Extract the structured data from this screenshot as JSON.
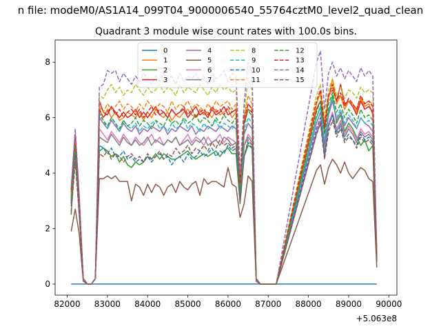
{
  "figure": {
    "suptitle": "n file: modeM0/AS1A14_099T04_9000006540_55764cztM0_level2_quad_clean",
    "title": "Quadrant 3 module wise count rates with 100.0s bins."
  },
  "chart_data": {
    "type": "line",
    "title": "Quadrant 3 module wise count rates with 100.0s bins.",
    "xlabel": "",
    "ylabel": "",
    "x_offset_label": "+5.063e8",
    "xlim": [
      81700,
      90200
    ],
    "ylim": [
      -0.4,
      8.8
    ],
    "xticks": [
      82000,
      83000,
      84000,
      85000,
      86000,
      87000,
      88000,
      89000,
      90000
    ],
    "yticks": [
      0,
      2,
      4,
      6,
      8
    ],
    "grid": false,
    "legend": {
      "placement": "upper center",
      "columns": 4
    },
    "x": [
      82100,
      82200,
      82300,
      82400,
      82500,
      82600,
      82700,
      82800,
      82900,
      83000,
      83100,
      83200,
      83300,
      83400,
      83500,
      83600,
      83700,
      83800,
      83900,
      84000,
      84100,
      84200,
      84300,
      84400,
      84500,
      84600,
      84700,
      84800,
      84900,
      85000,
      85100,
      85200,
      85300,
      85400,
      85500,
      85600,
      85700,
      85800,
      85900,
      86000,
      86100,
      86200,
      86300,
      86400,
      86500,
      86600,
      86700,
      86800,
      86900,
      87000,
      87200,
      88200,
      88300,
      88400,
      88500,
      88600,
      88700,
      88800,
      88900,
      89000,
      89100,
      89200,
      89300,
      89400,
      89500,
      89600,
      89700
    ],
    "series": [
      {
        "name": "0",
        "color": "#1f77b4",
        "dash": "solid",
        "values": [
          0,
          0,
          0,
          0,
          0,
          0,
          0,
          0,
          0,
          0,
          0,
          0,
          0,
          0,
          0,
          0,
          0,
          0,
          0,
          0,
          0,
          0,
          0,
          0,
          0,
          0,
          0,
          0,
          0,
          0,
          0,
          0,
          0,
          0,
          0,
          0,
          0,
          0,
          0,
          0,
          0,
          0,
          0,
          0,
          0,
          0,
          0,
          0,
          0,
          0,
          0,
          0,
          0,
          0,
          0,
          0,
          0,
          0,
          0,
          0,
          0,
          0,
          0,
          0,
          0,
          0,
          0
        ]
      },
      {
        "name": "1",
        "color": "#ff7f0e",
        "dash": "solid",
        "values": [
          3.2,
          5.2,
          3.0,
          0.2,
          0.0,
          0.0,
          0.2,
          6.3,
          6.0,
          6.3,
          6.0,
          6.2,
          5.9,
          6.0,
          6.2,
          6.1,
          6.0,
          6.2,
          5.9,
          6.2,
          6.0,
          6.3,
          6.1,
          6.0,
          6.2,
          5.9,
          6.1,
          6.0,
          6.2,
          6.3,
          6.1,
          6.0,
          6.3,
          6.1,
          6.2,
          6.0,
          6.3,
          6.1,
          6.2,
          6.3,
          6.0,
          6.2,
          3.5,
          5.8,
          6.5,
          6.3,
          0.2,
          0.0,
          0.0,
          0.0,
          0.0,
          6.5,
          6.9,
          5.5,
          6.7,
          7.4,
          6.5,
          6.8,
          6.3,
          6.6,
          6.5,
          6.2,
          6.7,
          6.4,
          6.5,
          6.1,
          1.0
        ]
      },
      {
        "name": "2",
        "color": "#2ca02c",
        "dash": "solid",
        "values": [
          2.5,
          4.8,
          2.5,
          0.2,
          0.0,
          0.0,
          0.2,
          4.8,
          4.9,
          4.8,
          4.6,
          4.7,
          4.4,
          4.6,
          4.3,
          4.2,
          4.4,
          4.3,
          4.4,
          4.6,
          4.5,
          4.7,
          4.5,
          4.7,
          4.6,
          4.5,
          4.5,
          4.6,
          4.7,
          4.8,
          4.6,
          4.5,
          4.6,
          4.7,
          4.6,
          4.7,
          4.8,
          4.6,
          4.8,
          4.9,
          4.7,
          4.7,
          2.9,
          4.6,
          5.0,
          4.9,
          0.2,
          0.0,
          0.0,
          0.0,
          0.0,
          6.0,
          6.4,
          4.9,
          6.2,
          6.8,
          5.8,
          6.1,
          5.5,
          5.8,
          5.6,
          5.3,
          5.0,
          5.2,
          4.8,
          5.0,
          0.8
        ]
      },
      {
        "name": "3",
        "color": "#d62728",
        "dash": "solid",
        "values": [
          3.0,
          5.0,
          2.9,
          0.2,
          0.0,
          0.0,
          0.2,
          6.6,
          6.2,
          6.1,
          6.4,
          6.2,
          6.0,
          6.2,
          6.0,
          6.1,
          6.3,
          6.0,
          6.2,
          6.0,
          6.2,
          6.4,
          6.1,
          6.2,
          6.0,
          6.3,
          6.1,
          6.2,
          6.3,
          6.0,
          6.2,
          6.4,
          6.1,
          6.2,
          6.0,
          6.3,
          6.1,
          6.2,
          6.4,
          6.1,
          6.2,
          6.3,
          3.4,
          5.8,
          6.3,
          6.2,
          0.2,
          0.0,
          0.0,
          0.0,
          0.0,
          6.3,
          6.6,
          5.6,
          6.8,
          7.0,
          6.6,
          7.2,
          6.5,
          6.6,
          6.4,
          6.1,
          6.6,
          6.3,
          6.4,
          6.2,
          1.0
        ]
      },
      {
        "name": "4",
        "color": "#9467bd",
        "dash": "solid",
        "values": [
          2.8,
          4.8,
          2.8,
          0.2,
          0.0,
          0.0,
          0.2,
          6.0,
          5.8,
          5.6,
          5.9,
          5.7,
          5.5,
          5.8,
          5.6,
          5.5,
          5.7,
          5.4,
          5.6,
          5.5,
          5.7,
          5.6,
          5.5,
          5.7,
          5.4,
          5.6,
          5.5,
          5.7,
          5.6,
          5.5,
          5.7,
          5.4,
          5.6,
          5.5,
          5.7,
          5.6,
          5.5,
          5.7,
          5.6,
          5.5,
          5.7,
          5.6,
          3.2,
          5.4,
          5.8,
          5.6,
          0.2,
          0.0,
          0.0,
          0.0,
          0.0,
          5.8,
          6.2,
          5.1,
          6.1,
          6.6,
          5.9,
          6.2,
          5.7,
          6.0,
          5.8,
          5.6,
          6.0,
          5.8,
          5.7,
          5.5,
          0.9
        ]
      },
      {
        "name": "5",
        "color": "#8c564b",
        "dash": "solid",
        "values": [
          1.9,
          2.7,
          1.8,
          0.1,
          0.0,
          0.0,
          0.2,
          3.8,
          3.8,
          3.9,
          3.8,
          3.9,
          3.7,
          3.7,
          3.7,
          3.0,
          3.6,
          3.5,
          3.2,
          3.6,
          3.3,
          3.6,
          3.5,
          3.2,
          3.5,
          3.6,
          3.3,
          3.7,
          3.5,
          3.4,
          3.6,
          3.7,
          3.2,
          3.8,
          3.6,
          3.7,
          3.7,
          3.6,
          3.5,
          4.2,
          3.6,
          3.5,
          2.4,
          2.9,
          3.9,
          3.7,
          0.1,
          0.0,
          0.0,
          0.0,
          0.0,
          4.1,
          4.3,
          3.6,
          4.2,
          4.5,
          4.3,
          4.0,
          4.4,
          4.0,
          3.8,
          4.0,
          4.2,
          4.1,
          3.8,
          3.7,
          0.6
        ]
      },
      {
        "name": "6",
        "color": "#e377c2",
        "dash": "solid",
        "values": [
          3.2,
          5.2,
          3.0,
          0.2,
          0.0,
          0.0,
          0.2,
          5.6,
          5.4,
          5.2,
          5.5,
          5.3,
          5.1,
          5.4,
          5.2,
          5.0,
          5.3,
          5.1,
          5.0,
          5.2,
          5.4,
          5.1,
          5.3,
          5.0,
          5.2,
          5.1,
          5.3,
          5.0,
          5.2,
          5.4,
          5.1,
          5.3,
          5.2,
          5.0,
          5.3,
          5.1,
          5.2,
          5.4,
          5.1,
          5.3,
          5.2,
          5.1,
          3.0,
          5.0,
          5.4,
          5.2,
          0.2,
          0.0,
          0.0,
          0.0,
          0.0,
          5.5,
          5.9,
          4.8,
          5.8,
          6.2,
          5.6,
          5.9,
          5.4,
          5.7,
          5.5,
          5.2,
          5.6,
          5.4,
          5.5,
          5.3,
          0.9
        ]
      },
      {
        "name": "7",
        "color": "#7f7f7f",
        "dash": "solid",
        "values": [
          3.0,
          4.9,
          2.8,
          0.2,
          0.0,
          0.0,
          0.2,
          5.3,
          5.2,
          5.1,
          5.4,
          5.2,
          5.0,
          5.3,
          5.1,
          5.0,
          5.2,
          5.0,
          5.1,
          5.3,
          5.0,
          5.2,
          5.1,
          5.0,
          5.2,
          5.1,
          5.3,
          5.0,
          5.1,
          5.2,
          5.0,
          5.2,
          5.1,
          5.3,
          5.0,
          5.1,
          5.2,
          5.0,
          5.3,
          5.2,
          5.0,
          5.1,
          3.0,
          5.0,
          5.3,
          5.1,
          0.2,
          0.0,
          0.0,
          0.0,
          0.0,
          5.4,
          5.8,
          4.7,
          5.7,
          6.1,
          5.5,
          5.8,
          5.3,
          5.6,
          5.4,
          5.1,
          5.5,
          5.3,
          5.4,
          5.2,
          0.9
        ]
      },
      {
        "name": "8",
        "color": "#bcbd22",
        "dash": "dashed",
        "values": [
          3.4,
          5.4,
          3.1,
          0.2,
          0.0,
          0.0,
          0.2,
          6.8,
          6.7,
          7.0,
          7.2,
          6.9,
          7.1,
          6.8,
          7.0,
          6.9,
          7.2,
          7.0,
          6.8,
          7.1,
          6.9,
          7.0,
          7.2,
          6.9,
          7.1,
          7.0,
          6.8,
          7.2,
          6.9,
          7.1,
          7.0,
          6.9,
          7.2,
          7.0,
          6.8,
          7.1,
          6.9,
          7.2,
          7.0,
          7.1,
          6.9,
          7.0,
          3.8,
          6.2,
          7.4,
          7.0,
          0.2,
          0.0,
          0.0,
          0.0,
          0.0,
          6.8,
          7.2,
          6.0,
          7.0,
          7.4,
          6.8,
          7.1,
          6.7,
          7.0,
          6.9,
          6.7,
          7.1,
          6.9,
          7.0,
          6.9,
          1.1
        ]
      },
      {
        "name": "9",
        "color": "#17becf",
        "dash": "dashed",
        "values": [
          3.3,
          5.3,
          3.0,
          0.2,
          0.0,
          0.0,
          0.2,
          6.2,
          5.9,
          5.6,
          6.0,
          5.8,
          5.5,
          5.9,
          5.7,
          5.6,
          5.8,
          5.5,
          5.7,
          5.6,
          5.8,
          5.9,
          5.6,
          5.7,
          5.5,
          5.8,
          5.6,
          5.7,
          5.9,
          5.6,
          5.8,
          5.7,
          5.5,
          5.8,
          5.6,
          5.7,
          5.9,
          5.6,
          5.8,
          5.7,
          5.6,
          5.8,
          3.3,
          5.5,
          6.0,
          5.8,
          0.2,
          0.0,
          0.0,
          0.0,
          0.0,
          6.0,
          6.4,
          5.2,
          6.3,
          6.7,
          6.0,
          6.3,
          5.8,
          6.1,
          5.9,
          5.6,
          6.0,
          5.8,
          5.9,
          5.7,
          1.0
        ]
      },
      {
        "name": "10",
        "color": "#1f77b4",
        "dash": "dashed",
        "values": [
          2.9,
          4.7,
          2.7,
          0.2,
          0.0,
          0.0,
          0.2,
          5.0,
          4.9,
          4.7,
          4.9,
          4.6,
          4.6,
          4.8,
          4.5,
          4.6,
          4.4,
          4.5,
          4.4,
          4.6,
          4.4,
          4.6,
          4.7,
          4.5,
          4.6,
          4.3,
          4.5,
          4.6,
          4.4,
          4.7,
          4.5,
          4.6,
          4.8,
          4.6,
          4.7,
          4.9,
          4.6,
          4.8,
          4.7,
          5.0,
          4.8,
          4.9,
          3.0,
          4.6,
          5.1,
          4.9,
          0.2,
          0.0,
          0.0,
          0.0,
          0.0,
          5.6,
          6.0,
          4.6,
          5.7,
          6.1,
          5.4,
          5.7,
          5.2,
          5.4,
          5.2,
          5.0,
          5.4,
          5.2,
          5.3,
          5.1,
          0.8
        ]
      },
      {
        "name": "11",
        "color": "#ff7f0e",
        "dash": "dashed",
        "values": [
          3.3,
          5.2,
          3.0,
          0.2,
          0.0,
          0.0,
          0.2,
          6.4,
          6.2,
          6.5,
          6.3,
          6.4,
          6.6,
          6.3,
          6.5,
          6.4,
          6.2,
          6.5,
          6.3,
          6.6,
          6.4,
          6.3,
          6.5,
          6.4,
          6.2,
          6.6,
          6.3,
          6.5,
          6.4,
          6.6,
          6.3,
          6.5,
          6.4,
          6.2,
          6.5,
          6.3,
          6.6,
          6.4,
          6.5,
          6.6,
          6.3,
          6.5,
          3.6,
          6.0,
          6.8,
          6.5,
          0.2,
          0.0,
          0.0,
          0.0,
          0.0,
          6.5,
          6.9,
          5.8,
          6.7,
          7.1,
          6.5,
          6.8,
          6.3,
          6.6,
          6.5,
          6.3,
          6.7,
          6.5,
          6.6,
          6.5,
          1.0
        ]
      },
      {
        "name": "12",
        "color": "#2ca02c",
        "dash": "dashed",
        "values": [
          3.1,
          5.0,
          2.9,
          0.2,
          0.0,
          0.0,
          0.2,
          6.1,
          5.9,
          5.7,
          6.0,
          5.8,
          5.6,
          5.9,
          5.7,
          5.8,
          6.0,
          5.7,
          5.9,
          5.8,
          5.6,
          5.9,
          5.8,
          5.7,
          6.0,
          5.8,
          5.9,
          5.7,
          6.0,
          5.8,
          5.9,
          6.1,
          5.8,
          6.0,
          5.9,
          5.7,
          6.0,
          5.8,
          6.1,
          5.9,
          5.8,
          6.0,
          3.4,
          5.7,
          6.3,
          6.0,
          0.2,
          0.0,
          0.0,
          0.0,
          0.0,
          6.2,
          6.6,
          5.4,
          6.5,
          6.9,
          6.2,
          6.5,
          6.0,
          6.3,
          6.1,
          5.8,
          6.3,
          6.0,
          6.1,
          5.9,
          1.0
        ]
      },
      {
        "name": "13",
        "color": "#d62728",
        "dash": "dashed",
        "values": [
          3.4,
          5.4,
          3.1,
          0.2,
          0.0,
          0.0,
          0.2,
          6.3,
          6.0,
          6.2,
          6.4,
          6.1,
          6.3,
          6.0,
          6.2,
          6.3,
          6.1,
          6.3,
          6.0,
          6.2,
          6.4,
          6.1,
          6.3,
          6.2,
          6.0,
          6.3,
          6.1,
          6.2,
          6.4,
          6.1,
          6.3,
          6.0,
          6.2,
          6.3,
          6.1,
          6.4,
          6.2,
          6.3,
          6.1,
          6.4,
          6.2,
          6.3,
          3.6,
          6.0,
          6.5,
          6.3,
          0.2,
          0.0,
          0.0,
          0.0,
          0.0,
          6.6,
          7.0,
          5.7,
          6.8,
          7.2,
          6.6,
          6.9,
          6.4,
          6.7,
          6.5,
          6.3,
          6.8,
          6.5,
          6.6,
          6.4,
          1.0
        ]
      },
      {
        "name": "14",
        "color": "#9467bd",
        "dash": "dashed",
        "values": [
          3.5,
          5.6,
          3.2,
          0.2,
          0.0,
          0.0,
          0.2,
          7.1,
          7.2,
          7.7,
          7.6,
          7.7,
          7.3,
          7.6,
          7.4,
          7.2,
          7.5,
          7.3,
          7.6,
          7.4,
          7.2,
          7.5,
          7.3,
          7.6,
          7.4,
          7.5,
          7.2,
          7.6,
          7.3,
          7.5,
          7.4,
          7.6,
          7.3,
          7.5,
          7.2,
          7.6,
          7.4,
          7.5,
          7.7,
          7.3,
          7.6,
          7.5,
          4.0,
          6.5,
          8.0,
          7.6,
          0.2,
          0.0,
          0.0,
          0.0,
          0.0,
          8.0,
          8.4,
          6.3,
          7.6,
          8.0,
          7.5,
          7.8,
          7.4,
          7.7,
          7.5,
          7.3,
          7.8,
          7.5,
          7.7,
          7.5,
          1.2
        ]
      },
      {
        "name": "15",
        "color": "#8c564b",
        "dash": "dashed",
        "values": [
          2.6,
          4.4,
          2.5,
          0.2,
          0.0,
          0.0,
          0.2,
          4.7,
          4.6,
          4.8,
          4.5,
          4.7,
          4.6,
          4.4,
          4.6,
          4.7,
          4.5,
          4.6,
          4.4,
          4.7,
          4.5,
          4.6,
          4.8,
          4.5,
          4.7,
          4.6,
          4.9,
          4.7,
          4.8,
          5.0,
          4.7,
          4.9,
          4.8,
          5.0,
          4.8,
          5.1,
          4.9,
          5.2,
          5.0,
          5.1,
          4.9,
          5.0,
          3.0,
          4.6,
          5.2,
          5.0,
          0.2,
          0.0,
          0.0,
          0.0,
          0.0,
          5.4,
          5.8,
          4.5,
          5.5,
          5.9,
          5.3,
          5.6,
          5.1,
          5.3,
          5.2,
          4.9,
          5.3,
          5.1,
          5.2,
          5.0,
          0.8
        ]
      }
    ]
  }
}
